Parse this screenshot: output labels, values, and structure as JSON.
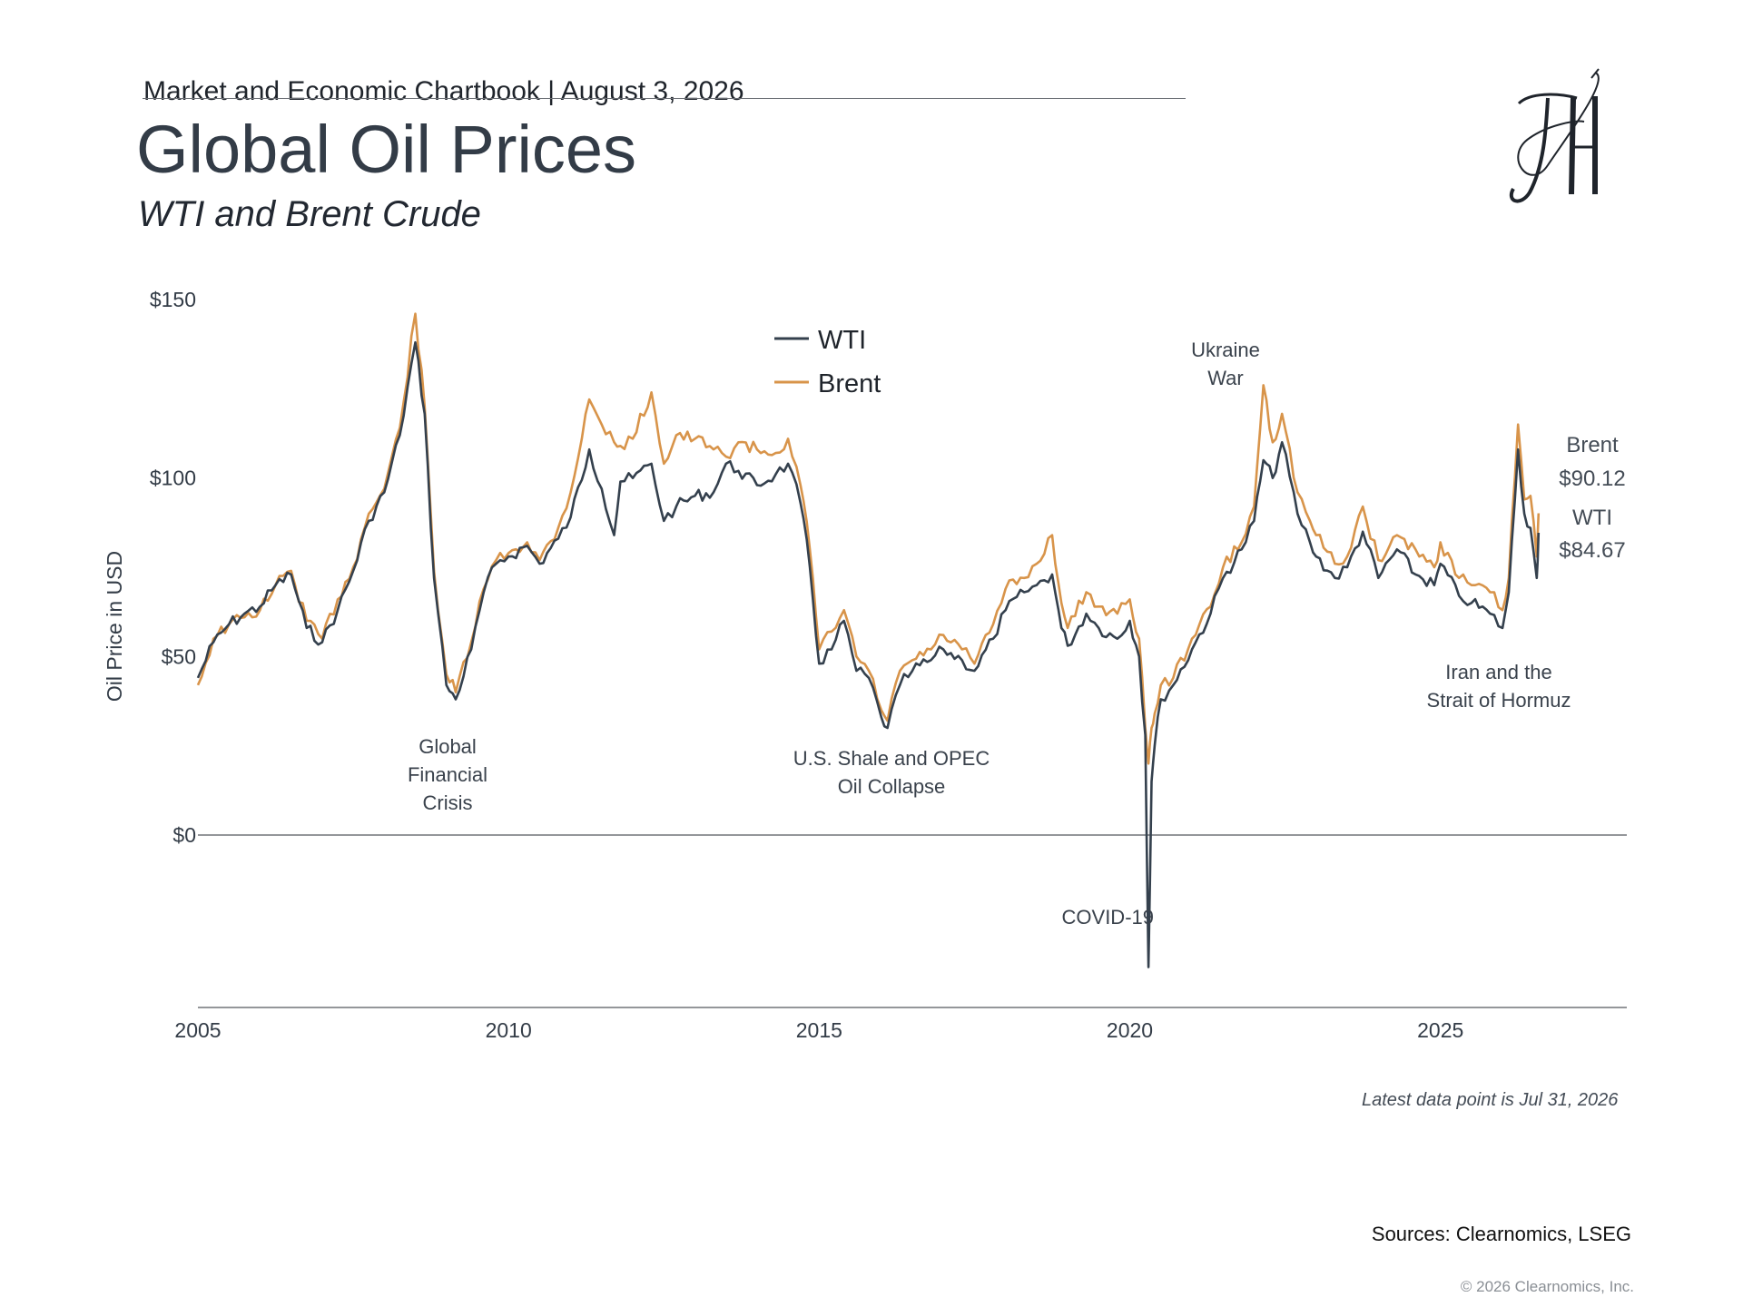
{
  "header": {
    "line": "Market and Economic Chartbook | August 3, 2026",
    "title": "Global Oil Prices",
    "subtitle": "WTI and Brent Crude"
  },
  "logo": {
    "icon": "cursive-jh-monogram-icon"
  },
  "footer": {
    "latest_note": "Latest data point is Jul 31, 2026",
    "sources": "Sources: Clearnomics, LSEG",
    "copyright": "© 2026 Clearnomics, Inc."
  },
  "chart_data": {
    "type": "line",
    "ylabel": "Oil Price in USD",
    "xlim": [
      2005.0,
      2028.0
    ],
    "ylim": [
      -38,
      150
    ],
    "x_ticks": [
      2005,
      2010,
      2015,
      2020,
      2025
    ],
    "x_tick_labels": [
      "2005",
      "2010",
      "2015",
      "2020",
      "2025"
    ],
    "y_ticks": [
      0,
      50,
      100,
      150
    ],
    "y_tick_labels": [
      "$0",
      "$50",
      "$100",
      "$150"
    ],
    "grid": false,
    "legend": {
      "placement": "top-center"
    },
    "colors": {
      "wti": "#34404d",
      "brent": "#d8944a",
      "axis": "#707478"
    },
    "series": [
      {
        "name": "WTI",
        "x": [
          2005.0,
          2005.25,
          2005.5,
          2005.75,
          2006.0,
          2006.25,
          2006.5,
          2006.75,
          2007.0,
          2007.25,
          2007.5,
          2007.75,
          2008.0,
          2008.25,
          2008.5,
          2008.65,
          2008.8,
          2009.0,
          2009.15,
          2009.4,
          2009.6,
          2009.8,
          2010.0,
          2010.3,
          2010.5,
          2010.8,
          2011.0,
          2011.3,
          2011.5,
          2011.7,
          2011.8,
          2012.0,
          2012.3,
          2012.5,
          2012.7,
          2013.0,
          2013.3,
          2013.5,
          2013.7,
          2014.0,
          2014.3,
          2014.5,
          2014.7,
          2014.85,
          2015.0,
          2015.2,
          2015.4,
          2015.6,
          2015.8,
          2016.0,
          2016.1,
          2016.3,
          2016.5,
          2016.8,
          2017.0,
          2017.3,
          2017.5,
          2017.8,
          2018.0,
          2018.3,
          2018.5,
          2018.75,
          2018.9,
          2019.0,
          2019.3,
          2019.5,
          2019.8,
          2020.0,
          2020.15,
          2020.25,
          2020.3,
          2020.35,
          2020.4,
          2020.5,
          2020.7,
          2021.0,
          2021.3,
          2021.5,
          2021.8,
          2022.0,
          2022.15,
          2022.3,
          2022.45,
          2022.7,
          2022.9,
          2023.0,
          2023.3,
          2023.5,
          2023.75,
          2024.0,
          2024.3,
          2024.6,
          2024.9,
          2025.0,
          2025.3,
          2025.5,
          2025.8,
          2026.0,
          2026.1,
          2026.25,
          2026.35,
          2026.45,
          2026.55,
          2026.58
        ],
        "values": [
          44,
          54,
          59,
          62,
          64,
          70,
          73,
          58,
          54,
          63,
          74,
          88,
          96,
          112,
          138,
          118,
          72,
          42,
          38,
          52,
          68,
          76,
          78,
          81,
          76,
          83,
          89,
          108,
          97,
          84,
          99,
          100,
          104,
          88,
          92,
          95,
          96,
          104,
          102,
          98,
          101,
          104,
          93,
          75,
          48,
          52,
          60,
          46,
          44,
          33,
          30,
          42,
          46,
          49,
          52,
          49,
          46,
          55,
          63,
          68,
          70,
          73,
          58,
          53,
          62,
          58,
          55,
          60,
          50,
          28,
          -37,
          15,
          25,
          38,
          42,
          52,
          62,
          72,
          80,
          88,
          105,
          100,
          110,
          90,
          82,
          78,
          72,
          75,
          85,
          72,
          80,
          73,
          70,
          76,
          67,
          65,
          62,
          58,
          68,
          108,
          90,
          86,
          72,
          84.67
        ]
      },
      {
        "name": "Brent",
        "x": [
          2005.0,
          2005.25,
          2005.5,
          2005.75,
          2006.0,
          2006.25,
          2006.5,
          2006.75,
          2007.0,
          2007.25,
          2007.5,
          2007.75,
          2008.0,
          2008.25,
          2008.5,
          2008.65,
          2008.8,
          2009.0,
          2009.15,
          2009.4,
          2009.6,
          2009.8,
          2010.0,
          2010.3,
          2010.5,
          2010.8,
          2011.0,
          2011.3,
          2011.5,
          2011.7,
          2011.8,
          2012.0,
          2012.3,
          2012.5,
          2012.7,
          2013.0,
          2013.3,
          2013.5,
          2013.7,
          2014.0,
          2014.3,
          2014.5,
          2014.7,
          2014.85,
          2015.0,
          2015.2,
          2015.4,
          2015.6,
          2015.8,
          2016.0,
          2016.1,
          2016.3,
          2016.5,
          2016.8,
          2017.0,
          2017.3,
          2017.5,
          2017.8,
          2018.0,
          2018.3,
          2018.5,
          2018.75,
          2018.9,
          2019.0,
          2019.3,
          2019.5,
          2019.8,
          2020.0,
          2020.15,
          2020.25,
          2020.3,
          2020.35,
          2020.4,
          2020.5,
          2020.7,
          2021.0,
          2021.3,
          2021.5,
          2021.8,
          2022.0,
          2022.15,
          2022.3,
          2022.45,
          2022.7,
          2022.9,
          2023.0,
          2023.3,
          2023.5,
          2023.75,
          2024.0,
          2024.3,
          2024.6,
          2024.9,
          2025.0,
          2025.3,
          2025.5,
          2025.8,
          2026.0,
          2026.1,
          2026.25,
          2026.35,
          2026.45,
          2026.55,
          2026.58
        ],
        "values": [
          42,
          55,
          59,
          61,
          63,
          70,
          74,
          60,
          55,
          66,
          75,
          90,
          97,
          114,
          146,
          120,
          74,
          45,
          40,
          54,
          69,
          77,
          79,
          82,
          77,
          86,
          96,
          122,
          115,
          110,
          109,
          111,
          124,
          104,
          112,
          111,
          108,
          106,
          110,
          108,
          107,
          111,
          98,
          80,
          52,
          57,
          63,
          50,
          46,
          35,
          32,
          46,
          49,
          52,
          56,
          52,
          48,
          59,
          69,
          72,
          76,
          84,
          65,
          58,
          68,
          64,
          62,
          66,
          55,
          30,
          20,
          30,
          34,
          42,
          44,
          55,
          64,
          75,
          82,
          92,
          126,
          110,
          118,
          96,
          88,
          84,
          76,
          78,
          92,
          77,
          84,
          80,
          75,
          82,
          72,
          70,
          68,
          63,
          72,
          115,
          94,
          95,
          78,
          90.12
        ]
      }
    ],
    "annotations": [
      {
        "lines": [
          "Global",
          "Financial",
          "Crisis"
        ],
        "x": 2009.0
      },
      {
        "lines": [
          "U.S. Shale and OPEC",
          "Oil Collapse"
        ],
        "x": 2016.1
      },
      {
        "lines": [
          "COVID-19"
        ],
        "x": 2019.6
      },
      {
        "lines": [
          "Ukraine",
          "War"
        ],
        "x": 2021.4
      },
      {
        "lines": [
          "Iran and the",
          "Strait of Hormuz"
        ],
        "x": 2025.75
      }
    ],
    "end_labels": {
      "brent": {
        "name": "Brent",
        "value": "$90.12"
      },
      "wti": {
        "name": "WTI",
        "value": "$84.67"
      }
    }
  }
}
